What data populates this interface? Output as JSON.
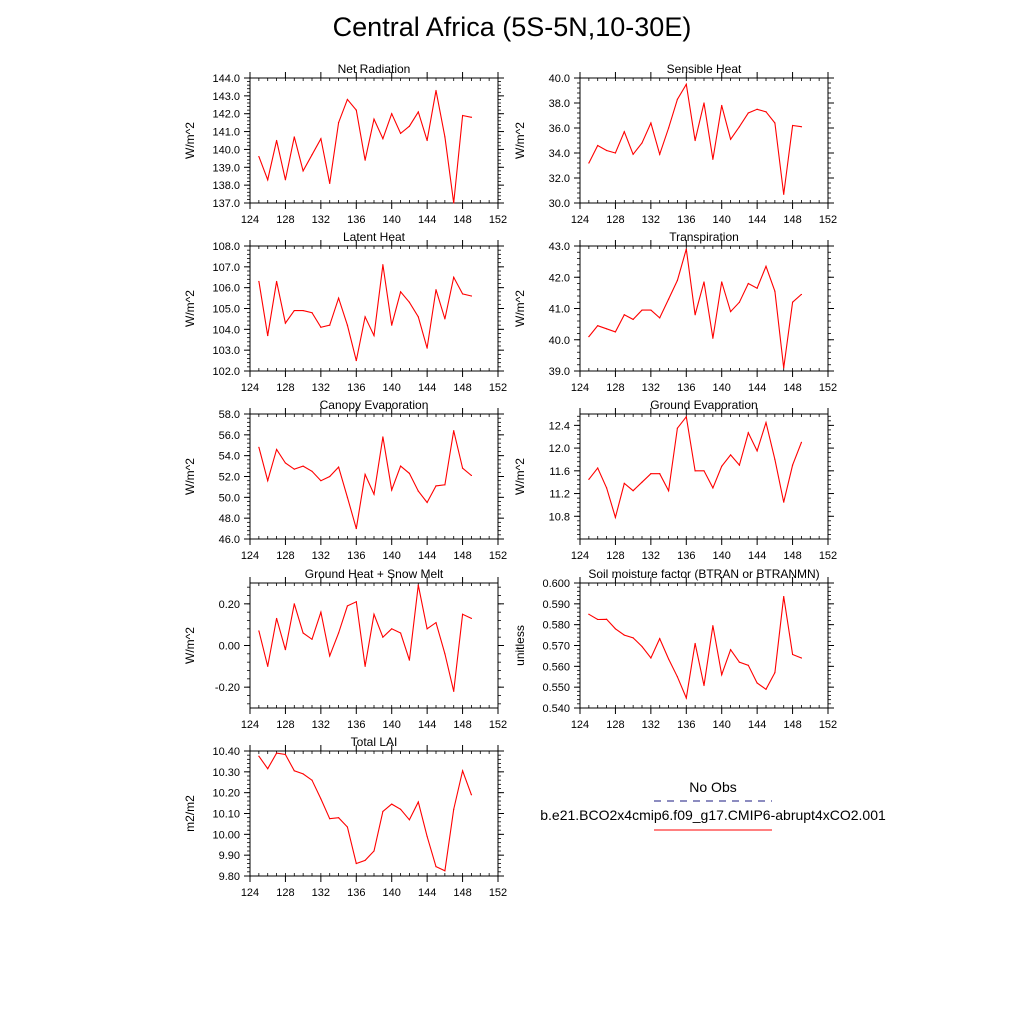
{
  "figure": {
    "title": "Central Africa (5S-5N,10-30E)",
    "line_color": "#ff0000",
    "obs_line_color": "#1a1a80"
  },
  "legend": {
    "obs_label": "No Obs",
    "case_label": "b.e21.BCO2x4cmip6.f09_g17.CMIP6-abrupt4xCO2.001"
  },
  "chart_data": [
    {
      "id": "net-radiation",
      "type": "line",
      "title": "Net Radiation",
      "xlabel": "",
      "ylabel": "W/m^2",
      "xlim": [
        124,
        152
      ],
      "ylim": [
        137.0,
        144.0
      ],
      "xticks": [
        "124",
        "128",
        "132",
        "136",
        "140",
        "144",
        "148",
        "152"
      ],
      "yticks": [
        "137.0",
        "138.0",
        "139.0",
        "140.0",
        "141.0",
        "142.0",
        "143.0",
        "144.0"
      ],
      "x": [
        125,
        126,
        127,
        128,
        129,
        130,
        131,
        132,
        133,
        134,
        135,
        136,
        137,
        138,
        139,
        140,
        141,
        142,
        143,
        144,
        145,
        146,
        147,
        148,
        149
      ],
      "values": [
        139.6,
        138.3,
        140.5,
        138.3,
        140.7,
        138.8,
        139.7,
        140.6,
        138.1,
        141.5,
        142.8,
        142.2,
        139.4,
        141.7,
        140.6,
        142.0,
        140.9,
        141.3,
        142.1,
        140.5,
        143.3,
        140.7,
        137.0,
        141.9,
        141.8
      ]
    },
    {
      "id": "sensible-heat",
      "type": "line",
      "title": "Sensible Heat",
      "xlabel": "",
      "ylabel": "W/m^2",
      "xlim": [
        124,
        152
      ],
      "ylim": [
        30.0,
        40.0
      ],
      "xticks": [
        "124",
        "128",
        "132",
        "136",
        "140",
        "144",
        "148",
        "152"
      ],
      "yticks": [
        "30.0",
        "32.0",
        "34.0",
        "36.0",
        "38.0",
        "40.0"
      ],
      "x": [
        125,
        126,
        127,
        128,
        129,
        130,
        131,
        132,
        133,
        134,
        135,
        136,
        137,
        138,
        139,
        140,
        141,
        142,
        143,
        144,
        145,
        146,
        147,
        148,
        149
      ],
      "values": [
        33.2,
        34.6,
        34.2,
        34.0,
        35.7,
        33.9,
        34.8,
        36.4,
        33.9,
        36.0,
        38.3,
        39.5,
        35.0,
        38.0,
        33.5,
        37.8,
        35.1,
        36.1,
        37.2,
        37.5,
        37.3,
        36.4,
        30.7,
        36.2,
        36.1
      ]
    },
    {
      "id": "latent-heat",
      "type": "line",
      "title": "Latent Heat",
      "xlabel": "",
      "ylabel": "W/m^2",
      "xlim": [
        124,
        152
      ],
      "ylim": [
        102.0,
        108.0
      ],
      "xticks": [
        "124",
        "128",
        "132",
        "136",
        "140",
        "144",
        "148",
        "152"
      ],
      "yticks": [
        "102.0",
        "103.0",
        "104.0",
        "105.0",
        "106.0",
        "107.0",
        "108.0"
      ],
      "x": [
        125,
        126,
        127,
        128,
        129,
        130,
        131,
        132,
        133,
        134,
        135,
        136,
        137,
        138,
        139,
        140,
        141,
        142,
        143,
        144,
        145,
        146,
        147,
        148,
        149
      ],
      "values": [
        106.3,
        103.7,
        106.3,
        104.3,
        104.9,
        104.9,
        104.8,
        104.1,
        104.2,
        105.5,
        104.2,
        102.5,
        104.6,
        103.7,
        107.1,
        104.2,
        105.8,
        105.3,
        104.6,
        103.1,
        105.9,
        104.5,
        106.5,
        105.7,
        105.6
      ]
    },
    {
      "id": "transpiration",
      "type": "line",
      "title": "Transpiration",
      "xlabel": "",
      "ylabel": "W/m^2",
      "xlim": [
        124,
        152
      ],
      "ylim": [
        39.0,
        43.0
      ],
      "xticks": [
        "124",
        "128",
        "132",
        "136",
        "140",
        "144",
        "148",
        "152"
      ],
      "yticks": [
        "39.0",
        "40.0",
        "41.0",
        "42.0",
        "43.0"
      ],
      "x": [
        125,
        126,
        127,
        128,
        129,
        130,
        131,
        132,
        133,
        134,
        135,
        136,
        137,
        138,
        139,
        140,
        141,
        142,
        143,
        144,
        145,
        146,
        147,
        148,
        149
      ],
      "values": [
        40.1,
        40.45,
        40.35,
        40.25,
        40.8,
        40.65,
        40.95,
        40.95,
        40.7,
        41.3,
        41.9,
        42.9,
        40.8,
        41.85,
        40.05,
        41.85,
        40.9,
        41.2,
        41.8,
        41.65,
        42.35,
        41.55,
        39.1,
        41.2,
        41.45
      ]
    },
    {
      "id": "canopy-evaporation",
      "type": "line",
      "title": "Canopy Evaporation",
      "xlabel": "",
      "ylabel": "W/m^2",
      "xlim": [
        124,
        152
      ],
      "ylim": [
        46.0,
        58.0
      ],
      "xticks": [
        "124",
        "128",
        "132",
        "136",
        "140",
        "144",
        "148",
        "152"
      ],
      "yticks": [
        "46.0",
        "48.0",
        "50.0",
        "52.0",
        "54.0",
        "56.0",
        "58.0"
      ],
      "x": [
        125,
        126,
        127,
        128,
        129,
        130,
        131,
        132,
        133,
        134,
        135,
        136,
        137,
        138,
        139,
        140,
        141,
        142,
        143,
        144,
        145,
        146,
        147,
        148,
        149
      ],
      "values": [
        54.8,
        51.6,
        54.6,
        53.3,
        52.7,
        53.0,
        52.5,
        51.6,
        52.0,
        52.9,
        50.0,
        47.0,
        52.2,
        50.3,
        55.8,
        50.7,
        53.0,
        52.3,
        50.6,
        49.5,
        51.1,
        51.2,
        56.4,
        52.8,
        52.1
      ]
    },
    {
      "id": "ground-evaporation",
      "type": "line",
      "title": "Ground Evaporation",
      "xlabel": "",
      "ylabel": "W/m^2",
      "xlim": [
        124,
        152
      ],
      "ylim": [
        10.4,
        12.6
      ],
      "xticks": [
        "124",
        "128",
        "132",
        "136",
        "140",
        "144",
        "148",
        "152"
      ],
      "yticks": [
        "10.8",
        "11.2",
        "11.6",
        "12.0",
        "12.4"
      ],
      "x": [
        125,
        126,
        127,
        128,
        129,
        130,
        131,
        132,
        133,
        134,
        135,
        136,
        137,
        138,
        139,
        140,
        141,
        142,
        143,
        144,
        145,
        146,
        147,
        148,
        149
      ],
      "values": [
        11.45,
        11.65,
        11.3,
        10.78,
        11.38,
        11.25,
        11.4,
        11.55,
        11.55,
        11.25,
        12.35,
        12.55,
        11.6,
        11.6,
        11.3,
        11.68,
        11.88,
        11.7,
        12.27,
        11.95,
        12.45,
        11.8,
        11.05,
        11.7,
        12.1
      ]
    },
    {
      "id": "ground-heat-snow-melt",
      "type": "line",
      "title": "Ground Heat + Snow Melt",
      "xlabel": "",
      "ylabel": "W/m^2",
      "xlim": [
        124,
        152
      ],
      "ylim": [
        -0.3,
        0.3
      ],
      "xticks": [
        "124",
        "128",
        "132",
        "136",
        "140",
        "144",
        "148",
        "152"
      ],
      "yticks": [
        "-0.20",
        "0.00",
        "0.20"
      ],
      "x": [
        125,
        126,
        127,
        128,
        129,
        130,
        131,
        132,
        133,
        134,
        135,
        136,
        137,
        138,
        139,
        140,
        141,
        142,
        143,
        144,
        145,
        146,
        147,
        148,
        149
      ],
      "values": [
        0.07,
        -0.1,
        0.13,
        -0.02,
        0.2,
        0.06,
        0.03,
        0.16,
        -0.05,
        0.06,
        0.19,
        0.21,
        -0.1,
        0.15,
        0.04,
        0.08,
        0.06,
        -0.07,
        0.29,
        0.08,
        0.11,
        -0.04,
        -0.22,
        0.15,
        0.13
      ]
    },
    {
      "id": "soil-moisture-factor",
      "type": "line",
      "title": "Soil moisture factor (BTRAN or BTRANMN)",
      "xlabel": "",
      "ylabel": "unitless",
      "xlim": [
        124,
        152
      ],
      "ylim": [
        0.54,
        0.6
      ],
      "xticks": [
        "124",
        "128",
        "132",
        "136",
        "140",
        "144",
        "148",
        "152"
      ],
      "yticks": [
        "0.540",
        "0.550",
        "0.560",
        "0.570",
        "0.580",
        "0.590",
        "0.600"
      ],
      "x": [
        125,
        126,
        127,
        128,
        129,
        130,
        131,
        132,
        133,
        134,
        135,
        136,
        137,
        138,
        139,
        140,
        141,
        142,
        143,
        144,
        145,
        146,
        147,
        148,
        149
      ],
      "values": [
        0.585,
        0.5825,
        0.5826,
        0.578,
        0.575,
        0.5737,
        0.5695,
        0.564,
        0.5733,
        0.5635,
        0.555,
        0.5448,
        0.571,
        0.5508,
        0.5795,
        0.556,
        0.568,
        0.562,
        0.5605,
        0.552,
        0.549,
        0.557,
        0.5935,
        0.5657,
        0.564
      ]
    },
    {
      "id": "total-lai",
      "type": "line",
      "title": "Total LAI",
      "xlabel": "",
      "ylabel": "m2/m2",
      "xlim": [
        124,
        152
      ],
      "ylim": [
        9.8,
        10.4
      ],
      "xticks": [
        "124",
        "128",
        "132",
        "136",
        "140",
        "144",
        "148",
        "152"
      ],
      "yticks": [
        "9.80",
        "9.90",
        "10.00",
        "10.10",
        "10.20",
        "10.30",
        "10.40"
      ],
      "x": [
        125,
        126,
        127,
        128,
        129,
        130,
        131,
        132,
        133,
        134,
        135,
        136,
        137,
        138,
        139,
        140,
        141,
        142,
        143,
        144,
        145,
        146,
        147,
        148,
        149
      ],
      "values": [
        10.375,
        10.315,
        10.39,
        10.383,
        10.305,
        10.29,
        10.26,
        10.17,
        10.075,
        10.08,
        10.035,
        9.86,
        9.875,
        9.92,
        10.11,
        10.145,
        10.12,
        10.07,
        10.155,
        9.99,
        9.845,
        9.825,
        10.12,
        10.305,
        10.19
      ]
    }
  ]
}
